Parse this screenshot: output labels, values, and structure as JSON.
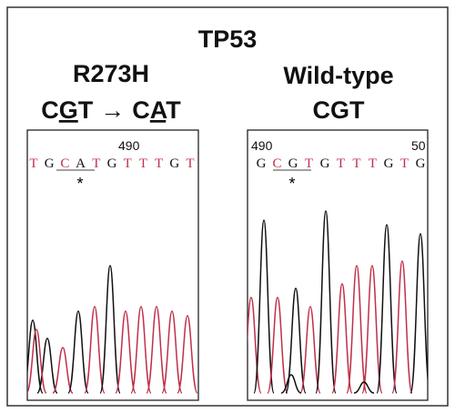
{
  "title": "TP53",
  "panels": [
    {
      "heading": "R273H",
      "codon": [
        "C",
        "G",
        "T",
        "→",
        "C",
        "A",
        "T"
      ],
      "positions": [
        "490"
      ],
      "sequence": [
        "T",
        "G",
        "C",
        "A",
        "T",
        "G",
        "T",
        "T",
        "T",
        "G",
        "T"
      ],
      "marker": "*"
    },
    {
      "heading": "Wild-type",
      "codon": [
        "CGT"
      ],
      "positions": [
        "490",
        "50"
      ],
      "sequence": [
        "G",
        "C",
        "G",
        "T",
        "G",
        "T",
        "T",
        "T",
        "G",
        "T",
        "G"
      ],
      "marker": "*"
    }
  ]
}
